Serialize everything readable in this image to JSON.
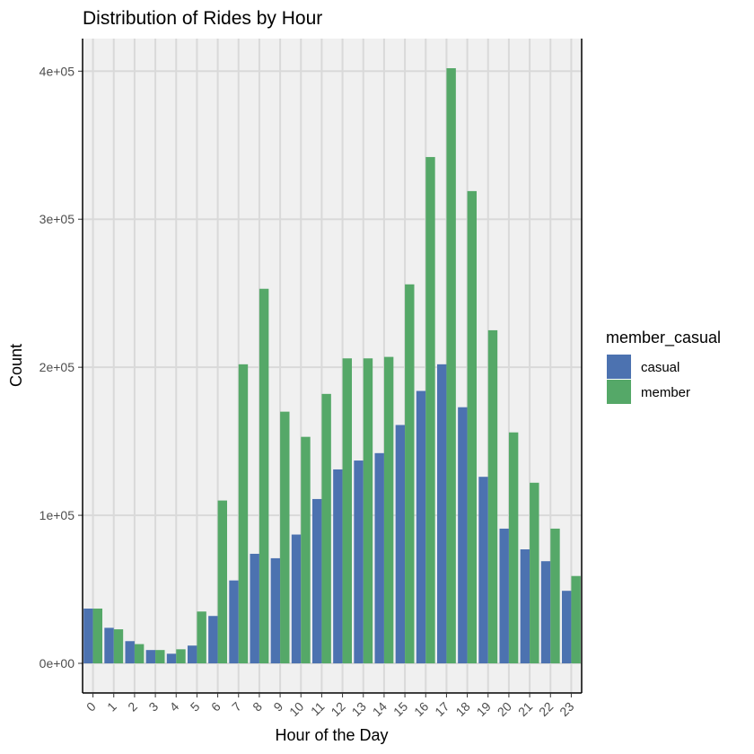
{
  "chart_data": {
    "type": "bar",
    "title": "Distribution of Rides by Hour",
    "xlabel": "Hour of the Day",
    "ylabel": "Count",
    "categories": [
      "0",
      "1",
      "2",
      "3",
      "4",
      "5",
      "6",
      "7",
      "8",
      "9",
      "10",
      "11",
      "12",
      "13",
      "14",
      "15",
      "16",
      "17",
      "18",
      "19",
      "20",
      "21",
      "22",
      "23"
    ],
    "series": [
      {
        "name": "casual",
        "color": "#4C72B0",
        "values": [
          37000,
          24000,
          15000,
          9000,
          6500,
          12000,
          32000,
          56000,
          74000,
          71000,
          87000,
          111000,
          131000,
          137000,
          142000,
          161000,
          184000,
          202000,
          173000,
          126000,
          91000,
          77000,
          69000,
          49000
        ]
      },
      {
        "name": "member",
        "color": "#55A868",
        "values": [
          37000,
          23000,
          13000,
          9000,
          9500,
          35000,
          110000,
          202000,
          253000,
          170000,
          153000,
          182000,
          206000,
          206000,
          207000,
          256000,
          342000,
          402000,
          319000,
          225000,
          156000,
          122000,
          91000,
          59000
        ]
      }
    ],
    "ylim": [
      -20000,
      422000
    ],
    "yticks": [
      0,
      100000,
      200000,
      300000,
      400000
    ],
    "ytick_labels": [
      "0e+00",
      "1e+05",
      "2e+05",
      "3e+05",
      "4e+05"
    ],
    "grid": true,
    "legend": {
      "title": "member_casual",
      "position": "right"
    }
  }
}
